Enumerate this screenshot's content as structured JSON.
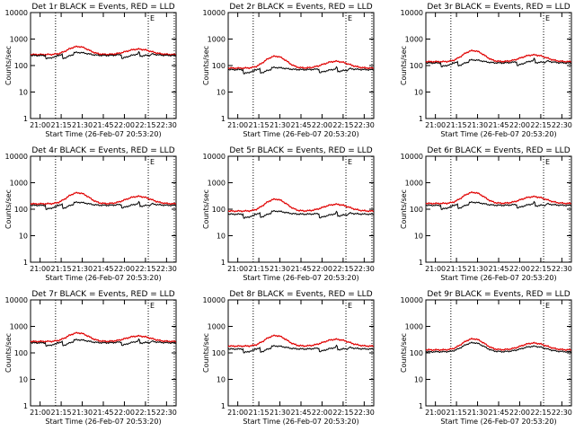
{
  "figure": {
    "x_ticks": [
      "21:00",
      "21:15",
      "21:30",
      "21:45",
      "22:00",
      "22:15",
      "22:30"
    ],
    "x_tick_minutes": [
      0,
      15,
      30,
      45,
      60,
      75,
      90
    ],
    "x_range_minutes": [
      -6.8,
      96.8
    ],
    "x_label": "Start Time (26-Feb-07 20:53:20)",
    "y_label": "Counts/sec",
    "y_ticks": [
      {
        "label": "1",
        "value": 1
      },
      {
        "label": "10",
        "value": 10
      },
      {
        "label": "100",
        "value": 100
      },
      {
        "label": "1000",
        "value": 1000
      },
      {
        "label": "10000",
        "value": 10000
      }
    ],
    "y_range": [
      1,
      10000
    ],
    "marker_lines_minutes": [
      11,
      77,
      95.5
    ],
    "marker_label": "E",
    "colors": {
      "events": "#000000",
      "lld": "#e00000"
    }
  },
  "chart_data": [
    {
      "type": "line",
      "title": "Det 1r BLACK = Events, RED = LLD",
      "xlabel": "Start Time (26-Feb-07 20:53:20)",
      "ylabel": "Counts/sec",
      "y_scale": "log",
      "ylim": [
        1,
        10000
      ],
      "series": [
        {
          "name": "Events",
          "color": "#000000",
          "base": 240,
          "bump": [
            1.3,
            1.3
          ],
          "dips": [
            0.75,
            0.7,
            0.7,
            0.72
          ]
        },
        {
          "name": "LLD",
          "color": "#e00000",
          "base": 260,
          "bump": [
            2.0,
            1.6
          ],
          "dips": [
            1,
            1,
            1,
            1
          ]
        }
      ]
    },
    {
      "type": "line",
      "title": "Det 2r BLACK = Events, RED = LLD",
      "xlabel": "Start Time (26-Feb-07 20:53:20)",
      "ylabel": "Counts/sec",
      "y_scale": "log",
      "ylim": [
        1,
        10000
      ],
      "series": [
        {
          "name": "Events",
          "color": "#000000",
          "base": 70,
          "bump": [
            1.2,
            1.2
          ],
          "dips": [
            0.7,
            0.7,
            0.72,
            0.7
          ]
        },
        {
          "name": "LLD",
          "color": "#e00000",
          "base": 80,
          "bump": [
            2.8,
            1.8
          ],
          "dips": [
            1,
            1,
            1,
            1
          ]
        }
      ]
    },
    {
      "type": "line",
      "title": "Det 3r BLACK = Events, RED = LLD",
      "xlabel": "Start Time (26-Feb-07 20:53:20)",
      "ylabel": "Counts/sec",
      "y_scale": "log",
      "ylim": [
        1,
        10000
      ],
      "series": [
        {
          "name": "Events",
          "color": "#000000",
          "base": 125,
          "bump": [
            1.3,
            1.4
          ],
          "dips": [
            0.72,
            0.72,
            0.7,
            0.72
          ]
        },
        {
          "name": "LLD",
          "color": "#e00000",
          "base": 140,
          "bump": [
            2.6,
            1.8
          ],
          "dips": [
            1,
            1,
            1,
            1
          ]
        }
      ]
    },
    {
      "type": "line",
      "title": "Det 4r BLACK = Events, RED = LLD",
      "xlabel": "Start Time (26-Feb-07 20:53:20)",
      "ylabel": "Counts/sec",
      "y_scale": "log",
      "ylim": [
        1,
        10000
      ],
      "series": [
        {
          "name": "Events",
          "color": "#000000",
          "base": 140,
          "bump": [
            1.3,
            1.3
          ],
          "dips": [
            0.7,
            0.7,
            0.72,
            0.7
          ]
        },
        {
          "name": "LLD",
          "color": "#e00000",
          "base": 160,
          "bump": [
            2.6,
            1.9
          ],
          "dips": [
            1,
            1,
            1,
            1
          ]
        }
      ]
    },
    {
      "type": "line",
      "title": "Det 5r BLACK = Events, RED = LLD",
      "xlabel": "Start Time (26-Feb-07 20:53:20)",
      "ylabel": "Counts/sec",
      "y_scale": "log",
      "ylim": [
        1,
        10000
      ],
      "series": [
        {
          "name": "Events",
          "color": "#000000",
          "base": 65,
          "bump": [
            1.3,
            1.2
          ],
          "dips": [
            0.7,
            0.7,
            0.68,
            0.7
          ]
        },
        {
          "name": "LLD",
          "color": "#e00000",
          "base": 85,
          "bump": [
            2.8,
            1.8
          ],
          "dips": [
            1,
            1,
            1,
            1
          ]
        }
      ]
    },
    {
      "type": "line",
      "title": "Det 6r BLACK = Events, RED = LLD",
      "xlabel": "Start Time (26-Feb-07 20:53:20)",
      "ylabel": "Counts/sec",
      "y_scale": "log",
      "ylim": [
        1,
        10000
      ],
      "series": [
        {
          "name": "Events",
          "color": "#000000",
          "base": 140,
          "bump": [
            1.3,
            1.3
          ],
          "dips": [
            0.7,
            0.7,
            0.72,
            0.72
          ]
        },
        {
          "name": "LLD",
          "color": "#e00000",
          "base": 165,
          "bump": [
            2.6,
            1.8
          ],
          "dips": [
            1,
            1,
            1,
            1
          ]
        }
      ]
    },
    {
      "type": "line",
      "title": "Det 7r BLACK = Events, RED = LLD",
      "xlabel": "Start Time (26-Feb-07 20:53:20)",
      "ylabel": "Counts/sec",
      "y_scale": "log",
      "ylim": [
        1,
        10000
      ],
      "series": [
        {
          "name": "Events",
          "color": "#000000",
          "base": 240,
          "bump": [
            1.3,
            1.3
          ],
          "dips": [
            0.75,
            0.72,
            0.72,
            0.74
          ]
        },
        {
          "name": "LLD",
          "color": "#e00000",
          "base": 270,
          "bump": [
            2.1,
            1.6
          ],
          "dips": [
            1,
            1,
            1,
            1
          ]
        }
      ]
    },
    {
      "type": "line",
      "title": "Det 8r BLACK = Events, RED = LLD",
      "xlabel": "Start Time (26-Feb-07 20:53:20)",
      "ylabel": "Counts/sec",
      "y_scale": "log",
      "ylim": [
        1,
        10000
      ],
      "series": [
        {
          "name": "Events",
          "color": "#000000",
          "base": 140,
          "bump": [
            1.3,
            1.3
          ],
          "dips": [
            0.72,
            0.7,
            0.72,
            0.72
          ]
        },
        {
          "name": "LLD",
          "color": "#e00000",
          "base": 180,
          "bump": [
            2.5,
            1.8
          ],
          "dips": [
            1,
            1,
            1,
            1
          ]
        }
      ]
    },
    {
      "type": "line",
      "title": "Det 9r BLACK = Events, RED = LLD",
      "xlabel": "Start Time (26-Feb-07 20:53:20)",
      "ylabel": "Counts/sec",
      "y_scale": "log",
      "ylim": [
        1,
        10000
      ],
      "series": [
        {
          "name": "Events",
          "color": "#000000",
          "base": 110,
          "bump": [
            2.2,
            1.6
          ],
          "dips": [
            1,
            1,
            1,
            1
          ]
        },
        {
          "name": "LLD",
          "color": "#e00000",
          "base": 130,
          "bump": [
            2.6,
            1.8
          ],
          "dips": [
            1,
            1,
            1,
            1
          ]
        }
      ]
    }
  ]
}
